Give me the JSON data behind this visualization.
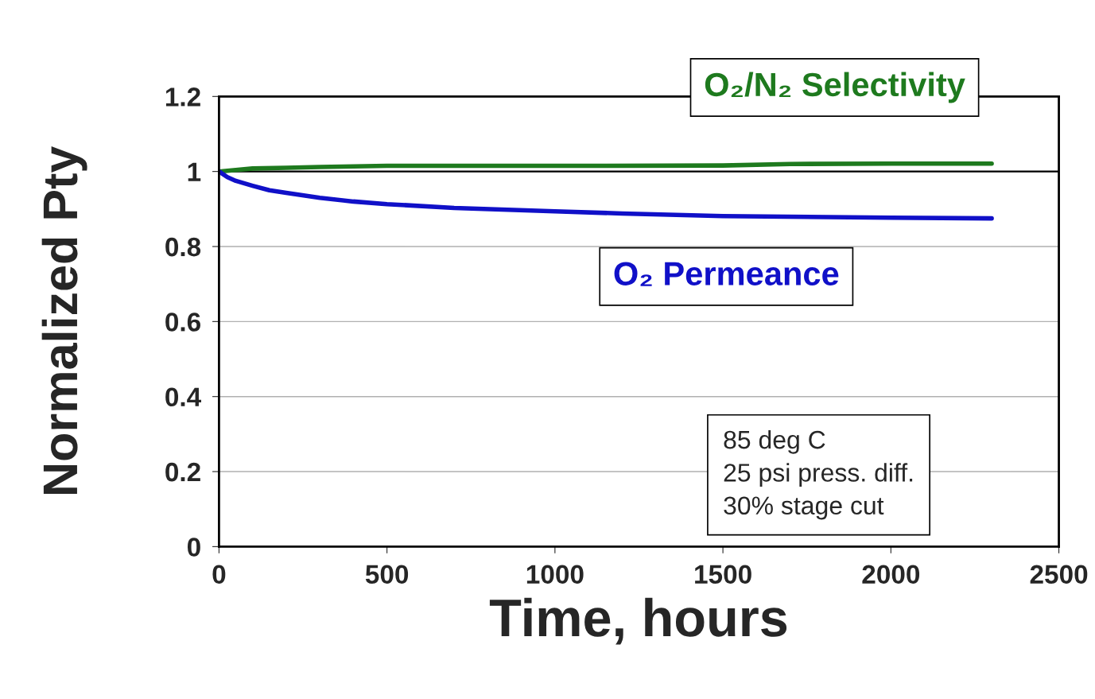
{
  "chart_data": {
    "type": "line",
    "xlabel": "Time, hours",
    "ylabel": "Normalized Pty",
    "xlim": [
      0,
      2500
    ],
    "xticks": [
      0,
      500,
      1000,
      1500,
      2000,
      2500
    ],
    "ylim": [
      0,
      1.2
    ],
    "yticks": [
      0,
      0.2,
      0.4,
      0.6,
      0.8,
      1,
      1.2
    ],
    "grid": "y",
    "legend": false,
    "marker": "none",
    "line_style": "solid",
    "series": [
      {
        "name": "O₂/N₂ Selectivity",
        "color": "#1e7a1e",
        "x": [
          0,
          50,
          100,
          200,
          300,
          500,
          1000,
          1500,
          1700,
          2000,
          2300
        ],
        "values": [
          1.0,
          1.004,
          1.008,
          1.01,
          1.012,
          1.015,
          1.015,
          1.016,
          1.02,
          1.021,
          1.021
        ]
      },
      {
        "name": "O₂ Permeance",
        "color": "#1010c8",
        "x": [
          0,
          25,
          50,
          100,
          150,
          200,
          300,
          400,
          500,
          700,
          1000,
          1200,
          1500,
          2000,
          2300
        ],
        "values": [
          1.0,
          0.985,
          0.975,
          0.962,
          0.95,
          0.943,
          0.93,
          0.92,
          0.913,
          0.903,
          0.894,
          0.888,
          0.881,
          0.877,
          0.875
        ]
      }
    ],
    "ref_lines": [
      {
        "axis": "y",
        "value": 1,
        "color": "#000000",
        "line_style": "solid"
      }
    ],
    "annotations": [
      "85 deg C\n25 psi press. diff.\n30% stage cut"
    ]
  }
}
